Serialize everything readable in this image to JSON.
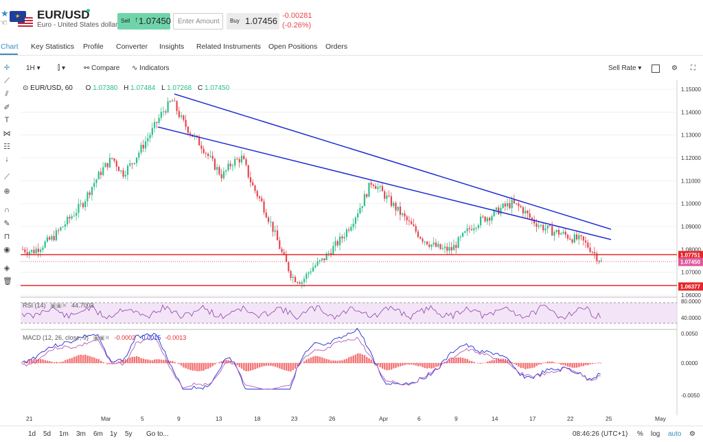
{
  "header": {
    "pair": "EUR/USD",
    "description": "Euro - United States dollar",
    "sell_label": "Sell",
    "sell_price": "1.07450",
    "amount_placeholder": "Enter Amount",
    "buy_label": "Buy",
    "buy_price": "1.07456",
    "change": "-0.00281",
    "change_pct": "(-0.26%)",
    "colors": {
      "up": "#70d4aa",
      "down": "#e5454d",
      "accent": "#3a8bbf"
    }
  },
  "tabs": [
    "Chart",
    "Key Statistics",
    "Profile",
    "Converter",
    "Insights",
    "Related Instruments",
    "Open Positions",
    "Orders"
  ],
  "toolbar": {
    "interval": "1H",
    "compare": "Compare",
    "indicators": "Indicators",
    "rate": "Sell Rate"
  },
  "legend": {
    "symbol": "EUR/USD, 60",
    "o_label": "O",
    "o": "1.07380",
    "h_label": "H",
    "h": "1.07484",
    "l_label": "L",
    "l": "1.07268",
    "c_label": "C",
    "c": "1.07450"
  },
  "rsi_legend": {
    "name": "RSI (14)",
    "value": "44.7003"
  },
  "macd_legend": {
    "name": "MACD (12, 26, close, 9)",
    "v1": "-0.0002",
    "v2": "-0.0015",
    "v3": "-0.0013"
  },
  "price_axis": [
    "1.15000",
    "1.14000",
    "1.13000",
    "1.12000",
    "1.11000",
    "1.10000",
    "1.09000",
    "1.08000",
    "1.07000",
    "1.06000"
  ],
  "price_tags": [
    "1.07751",
    "1.07450",
    "1.06377"
  ],
  "rsi_axis": [
    "80.0000",
    "40.0000"
  ],
  "macd_axis": [
    "0.0050",
    "0.0000",
    "-0.0050"
  ],
  "date_axis": [
    "21",
    "Mar",
    "5",
    "9",
    "13",
    "18",
    "23",
    "26",
    "Apr",
    "6",
    "9",
    "14",
    "17",
    "22",
    "25",
    "May"
  ],
  "bottom": {
    "ranges": [
      "1d",
      "5d",
      "1m",
      "3m",
      "6m",
      "1y",
      "5y"
    ],
    "goto": "Go to...",
    "time": "08:46:26 (UTC+1)",
    "pct": "%",
    "log": "log",
    "auto": "auto"
  },
  "chart_data": {
    "type": "candlestick",
    "symbol": "EUR/USD",
    "interval": "60",
    "ylim": [
      1.06,
      1.15
    ],
    "close_path": [
      1.08,
      1.079,
      1.082,
      1.085,
      1.09,
      1.095,
      1.1,
      1.108,
      1.115,
      1.12,
      1.113,
      1.118,
      1.125,
      1.132,
      1.14,
      1.145,
      1.136,
      1.13,
      1.125,
      1.118,
      1.112,
      1.118,
      1.12,
      1.108,
      1.1,
      1.09,
      1.078,
      1.068,
      1.066,
      1.072,
      1.075,
      1.08,
      1.085,
      1.092,
      1.1,
      1.11,
      1.105,
      1.1,
      1.095,
      1.09,
      1.085,
      1.082,
      1.08,
      1.08,
      1.085,
      1.09,
      1.093,
      1.095,
      1.098,
      1.1,
      1.098,
      1.093,
      1.09,
      1.088,
      1.087,
      1.085,
      1.084,
      1.08,
      1.0745
    ],
    "horizontal_levels": [
      1.07751,
      1.0745,
      1.06377
    ],
    "trendlines": [
      {
        "from": [
          "Mar 9",
          1.148
        ],
        "to": [
          "Apr 24",
          1.089
        ]
      },
      {
        "from": [
          "Mar 8",
          1.134
        ],
        "to": [
          "Apr 24",
          1.084
        ]
      }
    ],
    "rsi": {
      "period": 14,
      "value": 44.7003,
      "bands": [
        70,
        30
      ]
    },
    "macd": {
      "fast": 12,
      "slow": 26,
      "signal": 9,
      "values": [
        -0.0002,
        -0.0015,
        -0.0013
      ]
    }
  }
}
